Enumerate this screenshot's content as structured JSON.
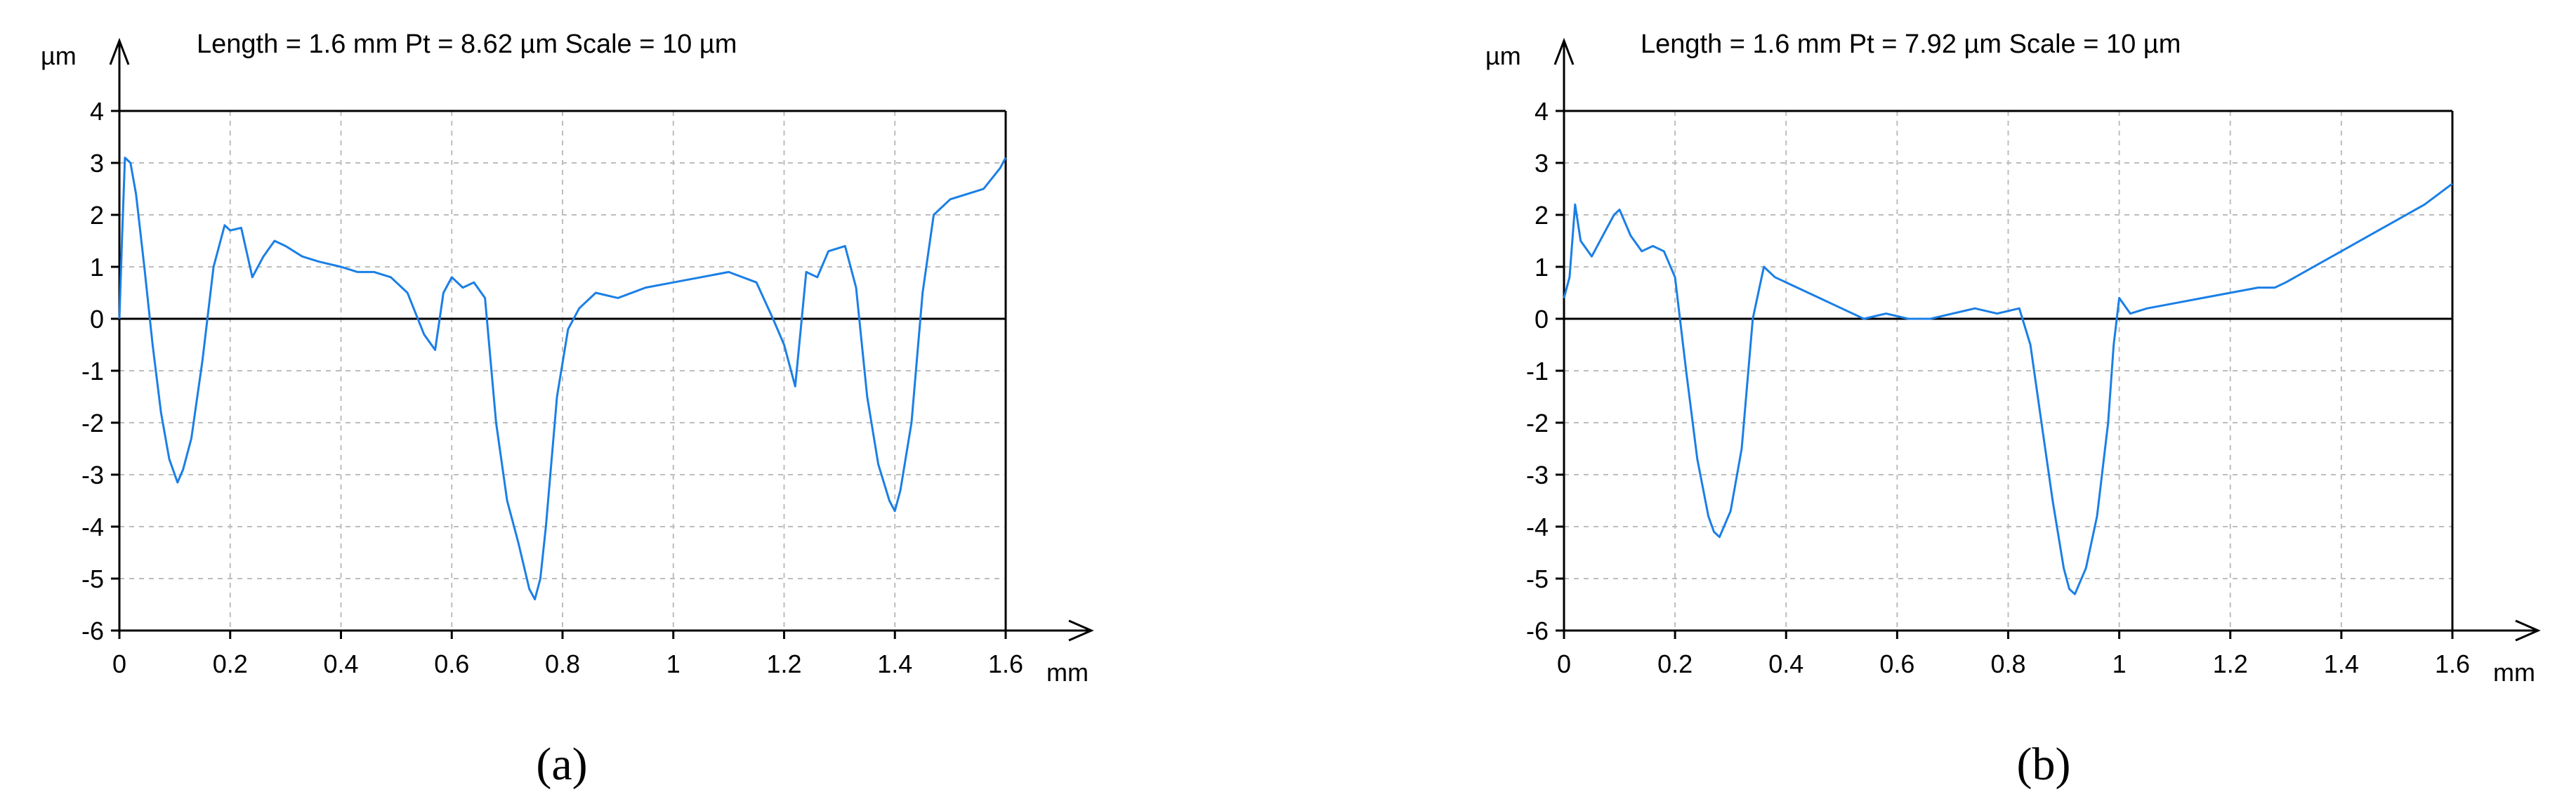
{
  "chart_data": [
    {
      "type": "line",
      "title": "Length = 1.6 mm  Pt = 8.62 µm  Scale = 10 µm",
      "ylabel": "µm",
      "xlabel": "mm",
      "caption": "(a)",
      "xlim": [
        0,
        1.6
      ],
      "ylim": [
        -6,
        4
      ],
      "x_ticks": [
        0,
        0.2,
        0.4,
        0.6,
        0.8,
        1,
        1.2,
        1.4,
        1.6
      ],
      "x_tick_labels": [
        "0",
        "0.2",
        "0.4",
        "0.6",
        "0.8",
        "1",
        "1.2",
        "1.4",
        "1.6"
      ],
      "y_ticks": [
        4,
        3,
        2,
        1,
        0,
        -1,
        -2,
        -3,
        -4,
        -5,
        -6
      ],
      "y_tick_labels": [
        "4",
        "3",
        "2",
        "1",
        "0",
        "-1",
        "-2",
        "-3",
        "-4",
        "-5",
        "-6"
      ],
      "grid": true,
      "line_color": "#1a7fe6",
      "series": [
        {
          "x": [
            0,
            0.005,
            0.01,
            0.02,
            0.03,
            0.045,
            0.06,
            0.075,
            0.09,
            0.105,
            0.115,
            0.13,
            0.15,
            0.17,
            0.19,
            0.2,
            0.22,
            0.24,
            0.26,
            0.28,
            0.3,
            0.33,
            0.36,
            0.4,
            0.43,
            0.46,
            0.49,
            0.52,
            0.55,
            0.57,
            0.585,
            0.6,
            0.62,
            0.64,
            0.66,
            0.68,
            0.7,
            0.72,
            0.74,
            0.75,
            0.76,
            0.77,
            0.79,
            0.81,
            0.83,
            0.86,
            0.9,
            0.95,
            1.0,
            1.05,
            1.1,
            1.15,
            1.18,
            1.2,
            1.22,
            1.23,
            1.24,
            1.26,
            1.28,
            1.31,
            1.33,
            1.35,
            1.37,
            1.39,
            1.4,
            1.41,
            1.43,
            1.45,
            1.47,
            1.5,
            1.53,
            1.56,
            1.59,
            1.6
          ],
          "y": [
            0,
            1.6,
            3.1,
            3.0,
            2.4,
            1.0,
            -0.5,
            -1.8,
            -2.7,
            -3.15,
            -2.9,
            -2.3,
            -0.8,
            1.0,
            1.8,
            1.7,
            1.75,
            0.8,
            1.2,
            1.5,
            1.4,
            1.2,
            1.1,
            1.0,
            0.9,
            0.9,
            0.8,
            0.5,
            -0.3,
            -0.6,
            0.5,
            0.8,
            0.6,
            0.7,
            0.4,
            -2.0,
            -3.5,
            -4.3,
            -5.2,
            -5.4,
            -5.0,
            -4.0,
            -1.5,
            -0.2,
            0.2,
            0.5,
            0.4,
            0.6,
            0.7,
            0.8,
            0.9,
            0.7,
            0.0,
            -0.5,
            -1.3,
            -0.2,
            0.9,
            0.8,
            1.3,
            1.4,
            0.6,
            -1.5,
            -2.8,
            -3.5,
            -3.7,
            -3.3,
            -2.0,
            0.5,
            2.0,
            2.3,
            2.4,
            2.5,
            2.9,
            3.1
          ]
        }
      ]
    },
    {
      "type": "line",
      "title": "Length = 1.6 mm  Pt = 7.92 µm  Scale = 10 µm",
      "ylabel": "µm",
      "xlabel": "mm",
      "caption": "(b)",
      "xlim": [
        0,
        1.6
      ],
      "ylim": [
        -6,
        4
      ],
      "x_ticks": [
        0,
        0.2,
        0.4,
        0.6,
        0.8,
        1,
        1.2,
        1.4,
        1.6
      ],
      "x_tick_labels": [
        "0",
        "0.2",
        "0.4",
        "0.6",
        "0.8",
        "1",
        "1.2",
        "1.4",
        "1.6"
      ],
      "y_ticks": [
        4,
        3,
        2,
        1,
        0,
        -1,
        -2,
        -3,
        -4,
        -5,
        -6
      ],
      "y_tick_labels": [
        "4",
        "3",
        "2",
        "1",
        "0",
        "-1",
        "-2",
        "-3",
        "-4",
        "-5",
        "-6"
      ],
      "grid": true,
      "line_color": "#1a7fe6",
      "series": [
        {
          "x": [
            0,
            0.01,
            0.02,
            0.03,
            0.05,
            0.07,
            0.09,
            0.1,
            0.12,
            0.14,
            0.16,
            0.18,
            0.2,
            0.22,
            0.24,
            0.26,
            0.27,
            0.28,
            0.3,
            0.32,
            0.34,
            0.36,
            0.38,
            0.42,
            0.46,
            0.5,
            0.54,
            0.58,
            0.62,
            0.66,
            0.7,
            0.74,
            0.78,
            0.82,
            0.84,
            0.86,
            0.88,
            0.9,
            0.91,
            0.92,
            0.94,
            0.96,
            0.98,
            0.99,
            1.0,
            1.02,
            1.05,
            1.1,
            1.15,
            1.2,
            1.25,
            1.28,
            1.3,
            1.35,
            1.4,
            1.45,
            1.5,
            1.55,
            1.6
          ],
          "y": [
            0.4,
            0.8,
            2.2,
            1.5,
            1.2,
            1.6,
            2.0,
            2.1,
            1.6,
            1.3,
            1.4,
            1.3,
            0.8,
            -1.0,
            -2.7,
            -3.8,
            -4.1,
            -4.2,
            -3.7,
            -2.5,
            0.0,
            1.0,
            0.8,
            0.6,
            0.4,
            0.2,
            0.0,
            0.1,
            0.0,
            0.0,
            0.1,
            0.2,
            0.1,
            0.2,
            -0.5,
            -2.0,
            -3.5,
            -4.8,
            -5.2,
            -5.3,
            -4.8,
            -3.8,
            -2.0,
            -0.5,
            0.4,
            0.1,
            0.2,
            0.3,
            0.4,
            0.5,
            0.6,
            0.6,
            0.7,
            1.0,
            1.3,
            1.6,
            1.9,
            2.2,
            2.6
          ]
        }
      ]
    }
  ]
}
